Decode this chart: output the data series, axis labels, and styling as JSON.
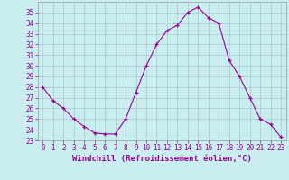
{
  "x": [
    0,
    1,
    2,
    3,
    4,
    5,
    6,
    7,
    8,
    9,
    10,
    11,
    12,
    13,
    14,
    15,
    16,
    17,
    18,
    19,
    20,
    21,
    22,
    23
  ],
  "y": [
    28.0,
    26.7,
    26.0,
    25.0,
    24.3,
    23.7,
    23.6,
    23.6,
    25.0,
    27.5,
    30.0,
    32.0,
    33.3,
    33.8,
    35.0,
    35.5,
    34.5,
    34.0,
    30.5,
    29.0,
    27.0,
    25.0,
    24.5,
    23.3
  ],
  "line_color": "#990099",
  "marker": "+",
  "marker_color": "#990099",
  "bg_color": "#c8eef0",
  "grid_color": "#b0b8d0",
  "xlabel": "Windchill (Refroidissement éolien,°C)",
  "xlabel_color": "#990099",
  "ylim": [
    23,
    36
  ],
  "xlim": [
    -0.5,
    23.5
  ],
  "yticks": [
    23,
    24,
    25,
    26,
    27,
    28,
    29,
    30,
    31,
    32,
    33,
    34,
    35
  ],
  "xticks": [
    0,
    1,
    2,
    3,
    4,
    5,
    6,
    7,
    8,
    9,
    10,
    11,
    12,
    13,
    14,
    15,
    16,
    17,
    18,
    19,
    20,
    21,
    22,
    23
  ],
  "tick_color": "#990099",
  "tick_fontsize": 5.5,
  "xlabel_fontsize": 6.5,
  "spine_color": "#999999"
}
